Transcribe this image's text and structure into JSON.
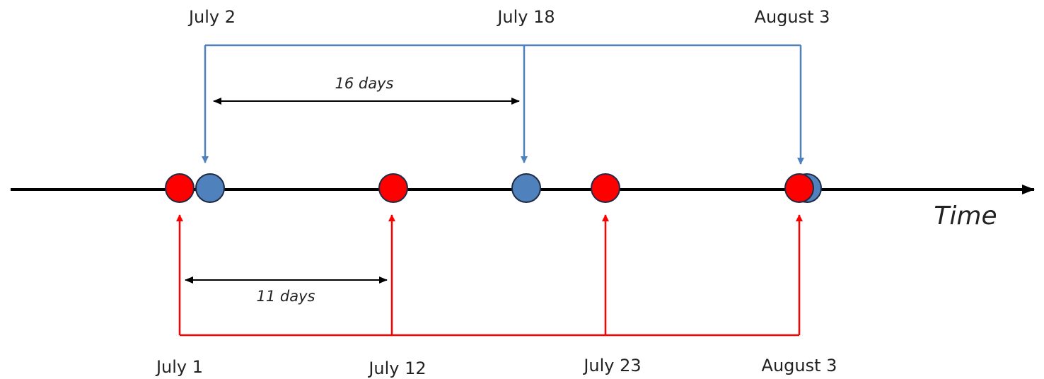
{
  "top_dates": [
    "July 2",
    "July 18",
    "August 3"
  ],
  "bottom_dates": [
    "July 1",
    "July 12",
    "July 23",
    "August 3"
  ],
  "intervals": [
    "16 days",
    "11 days"
  ],
  "axis_label": "Time"
}
